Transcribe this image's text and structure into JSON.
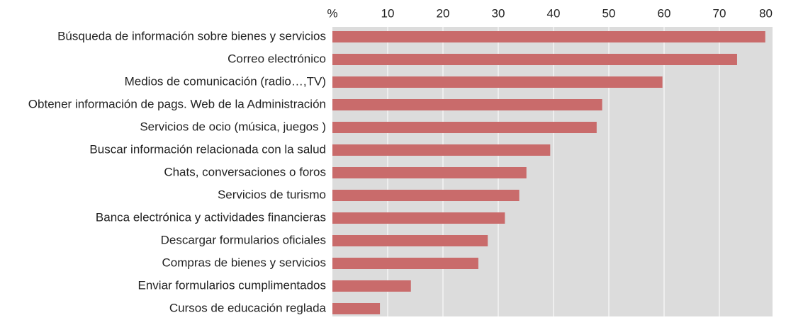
{
  "chart_data": {
    "type": "bar",
    "orientation": "horizontal",
    "categories": [
      "Búsqueda de información sobre bienes y servicios",
      "Correo electrónico",
      "Medios de  comunicación (radio…,TV)",
      "Obtener información de pags. Web de la Administración",
      "Servicios de ocio (música, juegos )",
      "Buscar información relacionada con la salud",
      "Chats, conversaciones o foros",
      "Servicios de turismo",
      "Banca electrónica y actividades financieras",
      "Descargar formularios oficiales",
      "Compras de bienes y servicios",
      "Enviar formularios cumplimentados",
      "Cursos de educación reglada"
    ],
    "values": [
      78.3,
      73.2,
      59.7,
      48.8,
      47.8,
      39.4,
      35.1,
      33.8,
      31.2,
      28.1,
      26.4,
      14.2,
      8.6
    ],
    "color": "#c96b6b",
    "xlim": [
      0,
      80
    ],
    "xticks": [
      {
        "value": 0,
        "label": "%"
      },
      10,
      20,
      30,
      40,
      50,
      60,
      70,
      80
    ],
    "grid": true
  }
}
